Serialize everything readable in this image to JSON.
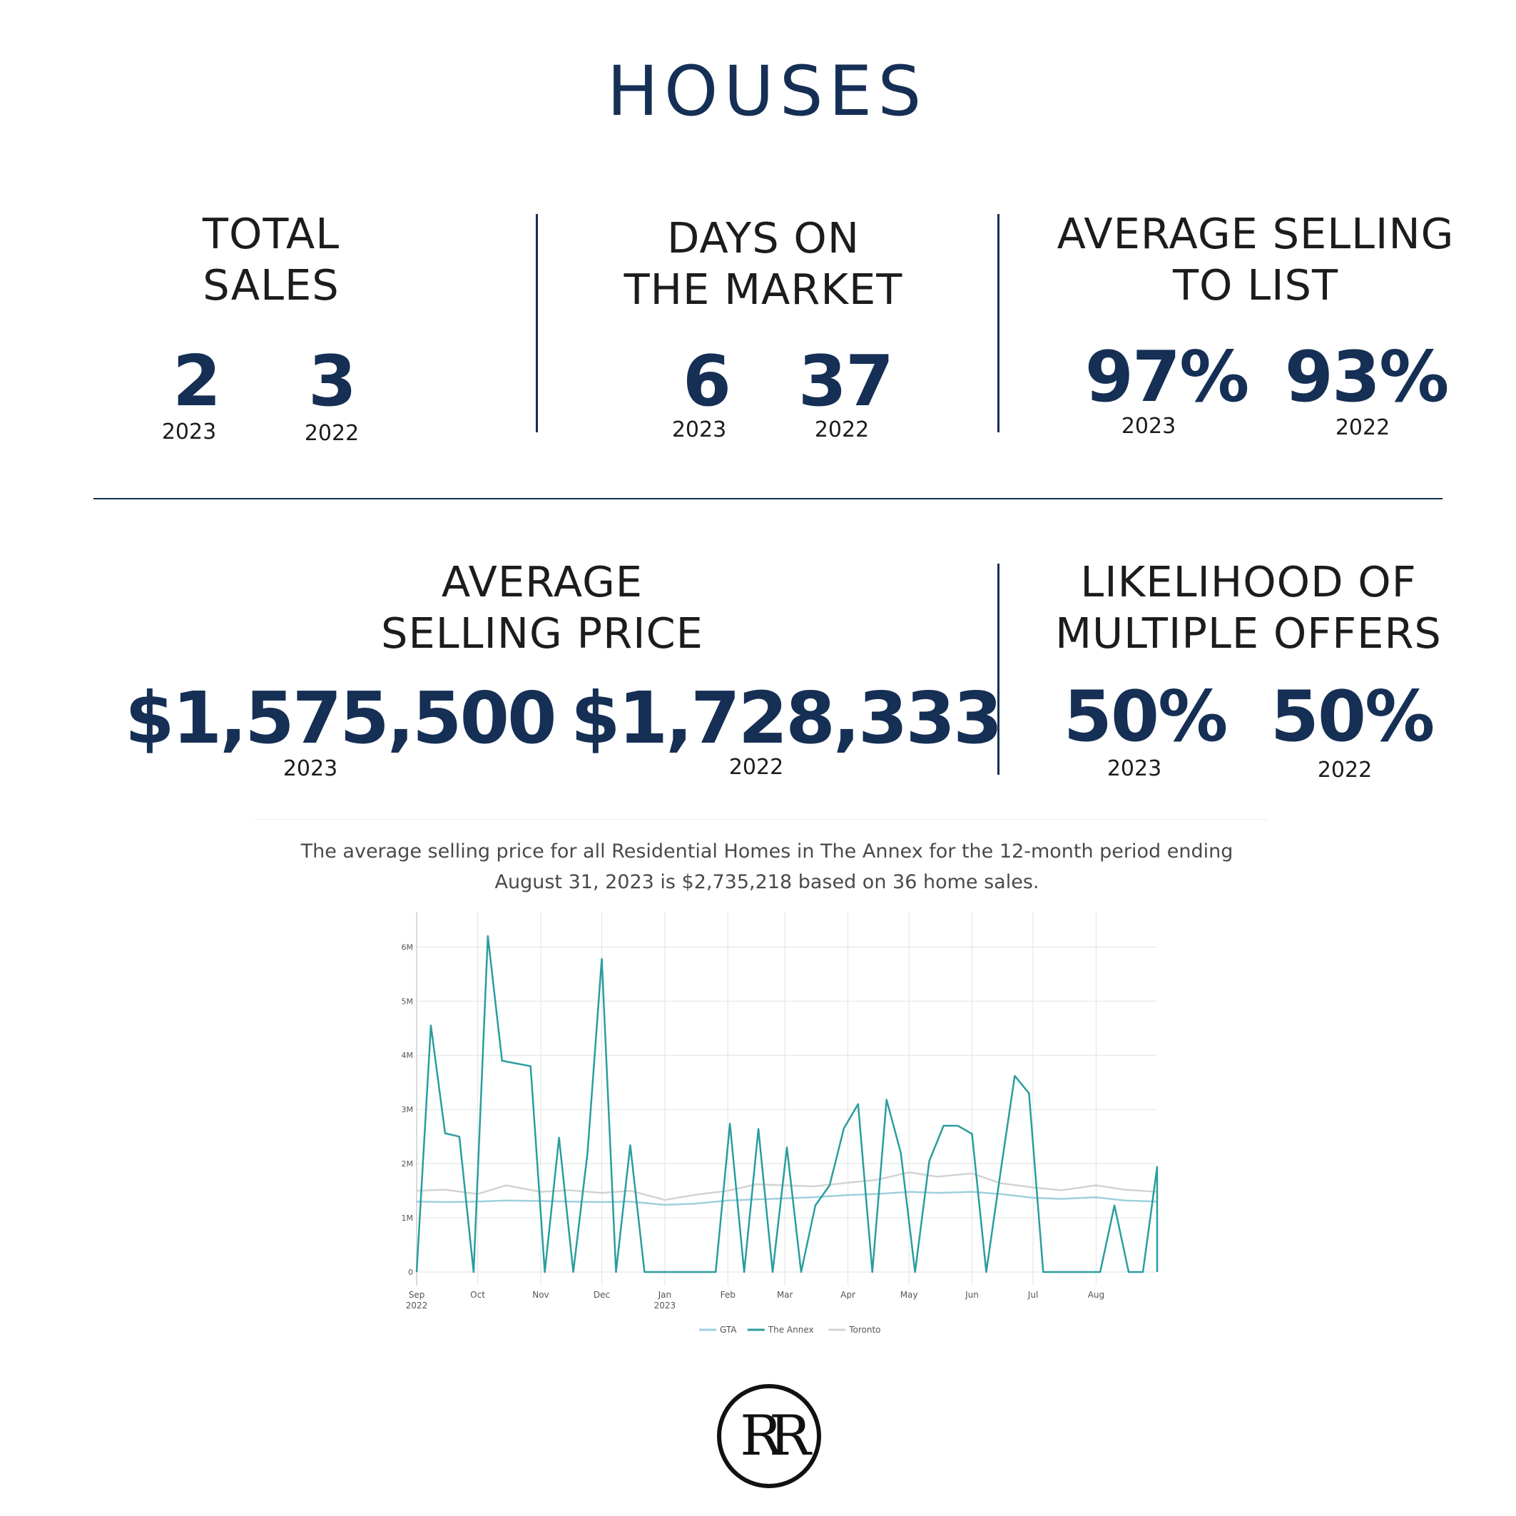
{
  "page": {
    "title": "HOUSES"
  },
  "stats": {
    "total_sales": {
      "label_line1": "TOTAL",
      "label_line2": "SALES",
      "value_2023": "2",
      "value_2022": "3",
      "year_a": "2023",
      "year_b": "2022"
    },
    "days_on_market": {
      "label_line1": "DAYS ON",
      "label_line2": "THE MARKET",
      "value_2023": "6",
      "value_2022": "37",
      "year_a": "2023",
      "year_b": "2022"
    },
    "avg_selling_to_list": {
      "label_line1": "AVERAGE SELLING",
      "label_line2": "TO LIST",
      "value_2023": "97%",
      "value_2022": "93%",
      "year_a": "2023",
      "year_b": "2022"
    },
    "avg_selling_price": {
      "label_line1": "AVERAGE",
      "label_line2": "SELLING PRICE",
      "value_2023": "$1,575,500",
      "value_2022": "$1,728,333",
      "year_a": "2023",
      "year_b": "2022"
    },
    "multiple_offers": {
      "label_line1": "LIKELIHOOD OF",
      "label_line2": "MULTIPLE OFFERS",
      "value_2023": "50%",
      "value_2022": "50%",
      "year_a": "2023",
      "year_b": "2022"
    }
  },
  "caption": {
    "line1": "The average selling price for all Residential Homes in The Annex for the 12-month period ending",
    "line2": "August 31, 2023 is $2,735,218 based on 36 home sales."
  },
  "colors": {
    "navy": "#152f55",
    "annex": "#2a9d9f",
    "gta": "#9ed0dc",
    "toronto": "#d3d3d3"
  },
  "chart_data": {
    "type": "line",
    "x_start": "2022-09-01",
    "x_end": "2023-08-31",
    "x_ticks": [
      {
        "date": "2022-09-01",
        "label": "Sep",
        "sub": "2022"
      },
      {
        "date": "2022-10-01",
        "label": "Oct",
        "sub": ""
      },
      {
        "date": "2022-11-01",
        "label": "Nov",
        "sub": ""
      },
      {
        "date": "2022-12-01",
        "label": "Dec",
        "sub": ""
      },
      {
        "date": "2023-01-01",
        "label": "Jan",
        "sub": "2023"
      },
      {
        "date": "2023-02-01",
        "label": "Feb",
        "sub": ""
      },
      {
        "date": "2023-03-01",
        "label": "Mar",
        "sub": ""
      },
      {
        "date": "2023-04-01",
        "label": "Apr",
        "sub": ""
      },
      {
        "date": "2023-05-01",
        "label": "May",
        "sub": ""
      },
      {
        "date": "2023-06-01",
        "label": "Jun",
        "sub": ""
      },
      {
        "date": "2023-07-01",
        "label": "Jul",
        "sub": ""
      },
      {
        "date": "2023-08-01",
        "label": "Aug",
        "sub": ""
      }
    ],
    "ylim": [
      -250000,
      6650000
    ],
    "y_ticks": [
      {
        "value": 0,
        "label": "0"
      },
      {
        "value": 1000000,
        "label": "1M"
      },
      {
        "value": 2000000,
        "label": "2M"
      },
      {
        "value": 3000000,
        "label": "3M"
      },
      {
        "value": 4000000,
        "label": "4M"
      },
      {
        "value": 5000000,
        "label": "5M"
      },
      {
        "value": 6000000,
        "label": "6M"
      }
    ],
    "legend_position": "bottom-center",
    "series": [
      {
        "name": "GTA",
        "color": "#9ed0dc",
        "width": 2.5,
        "points": [
          [
            "2022-09-01",
            1300000
          ],
          [
            "2022-09-15",
            1290000
          ],
          [
            "2022-10-01",
            1300000
          ],
          [
            "2022-10-15",
            1320000
          ],
          [
            "2022-11-01",
            1310000
          ],
          [
            "2022-11-15",
            1300000
          ],
          [
            "2022-12-01",
            1290000
          ],
          [
            "2022-12-15",
            1300000
          ],
          [
            "2023-01-01",
            1240000
          ],
          [
            "2023-01-15",
            1260000
          ],
          [
            "2023-02-01",
            1320000
          ],
          [
            "2023-02-15",
            1340000
          ],
          [
            "2023-03-01",
            1360000
          ],
          [
            "2023-03-15",
            1380000
          ],
          [
            "2023-04-01",
            1420000
          ],
          [
            "2023-04-15",
            1440000
          ],
          [
            "2023-05-01",
            1480000
          ],
          [
            "2023-05-15",
            1460000
          ],
          [
            "2023-06-01",
            1480000
          ],
          [
            "2023-06-15",
            1440000
          ],
          [
            "2023-07-01",
            1370000
          ],
          [
            "2023-07-15",
            1350000
          ],
          [
            "2023-08-01",
            1380000
          ],
          [
            "2023-08-15",
            1320000
          ],
          [
            "2023-08-31",
            1300000
          ]
        ]
      },
      {
        "name": "The Annex",
        "color": "#2a9d9f",
        "width": 2.5,
        "points": [
          [
            "2022-09-01",
            0
          ],
          [
            "2022-09-08",
            4550000
          ],
          [
            "2022-09-15",
            2560000
          ],
          [
            "2022-09-22",
            2500000
          ],
          [
            "2022-09-29",
            0
          ],
          [
            "2022-10-06",
            6200000
          ],
          [
            "2022-10-13",
            3900000
          ],
          [
            "2022-10-27",
            3800000
          ],
          [
            "2022-11-03",
            0
          ],
          [
            "2022-11-10",
            2480000
          ],
          [
            "2022-11-17",
            0
          ],
          [
            "2022-11-24",
            2200000
          ],
          [
            "2022-12-01",
            5780000
          ],
          [
            "2022-12-08",
            0
          ],
          [
            "2022-12-15",
            2340000
          ],
          [
            "2022-12-22",
            0
          ],
          [
            "2023-01-01",
            0
          ],
          [
            "2023-01-15",
            0
          ],
          [
            "2023-01-26",
            0
          ],
          [
            "2023-02-02",
            2740000
          ],
          [
            "2023-02-09",
            0
          ],
          [
            "2023-02-16",
            2640000
          ],
          [
            "2023-02-23",
            0
          ],
          [
            "2023-03-02",
            2300000
          ],
          [
            "2023-03-09",
            0
          ],
          [
            "2023-03-16",
            1230000
          ],
          [
            "2023-03-23",
            1600000
          ],
          [
            "2023-03-30",
            2650000
          ],
          [
            "2023-04-06",
            3100000
          ],
          [
            "2023-04-13",
            0
          ],
          [
            "2023-04-20",
            3180000
          ],
          [
            "2023-04-27",
            2200000
          ],
          [
            "2023-05-04",
            0
          ],
          [
            "2023-05-11",
            2050000
          ],
          [
            "2023-05-18",
            2700000
          ],
          [
            "2023-05-25",
            2700000
          ],
          [
            "2023-06-01",
            2550000
          ],
          [
            "2023-06-08",
            0
          ],
          [
            "2023-06-15",
            1840000
          ],
          [
            "2023-06-22",
            3620000
          ],
          [
            "2023-06-29",
            3300000
          ],
          [
            "2023-07-06",
            0
          ],
          [
            "2023-07-20",
            0
          ],
          [
            "2023-08-03",
            0
          ],
          [
            "2023-08-10",
            1230000
          ],
          [
            "2023-08-17",
            0
          ],
          [
            "2023-08-24",
            0
          ],
          [
            "2023-08-31",
            1940000
          ],
          [
            "2023-09-07",
            0
          ]
        ]
      },
      {
        "name": "Toronto",
        "color": "#d3d3d3",
        "width": 2.5,
        "points": [
          [
            "2022-09-01",
            1500000
          ],
          [
            "2022-09-15",
            1520000
          ],
          [
            "2022-10-01",
            1440000
          ],
          [
            "2022-10-15",
            1600000
          ],
          [
            "2022-11-01",
            1480000
          ],
          [
            "2022-11-15",
            1510000
          ],
          [
            "2022-12-01",
            1460000
          ],
          [
            "2022-12-15",
            1500000
          ],
          [
            "2023-01-01",
            1330000
          ],
          [
            "2023-01-15",
            1420000
          ],
          [
            "2023-02-01",
            1500000
          ],
          [
            "2023-02-15",
            1620000
          ],
          [
            "2023-03-01",
            1600000
          ],
          [
            "2023-03-15",
            1580000
          ],
          [
            "2023-04-01",
            1650000
          ],
          [
            "2023-04-15",
            1700000
          ],
          [
            "2023-05-01",
            1840000
          ],
          [
            "2023-05-15",
            1760000
          ],
          [
            "2023-06-01",
            1820000
          ],
          [
            "2023-06-15",
            1640000
          ],
          [
            "2023-07-01",
            1560000
          ],
          [
            "2023-07-15",
            1510000
          ],
          [
            "2023-08-01",
            1600000
          ],
          [
            "2023-08-15",
            1520000
          ],
          [
            "2023-08-31",
            1480000
          ]
        ]
      }
    ]
  },
  "logo": {
    "glyph": "RR"
  }
}
